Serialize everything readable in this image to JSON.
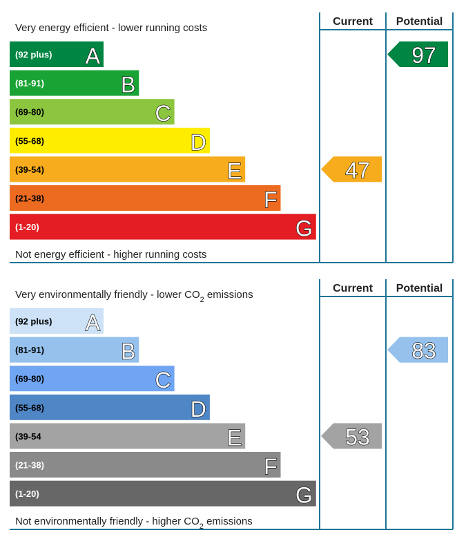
{
  "chart_data": [
    {
      "type": "bar",
      "top_text": "Very energy efficient - lower running costs",
      "bottom_text": "Not energy efficient - higher running costs",
      "columns": [
        "Current",
        "Potential"
      ],
      "bands": [
        {
          "range": "(92 plus)",
          "letter": "A",
          "color": "#008542",
          "label_color": "#ffffff"
        },
        {
          "range": "(81-91)",
          "letter": "B",
          "color": "#19a335",
          "label_color": "#ffffff"
        },
        {
          "range": "(69-80)",
          "letter": "C",
          "color": "#8cc63f",
          "label_color": "#000000"
        },
        {
          "range": "(55-68)",
          "letter": "D",
          "color": "#ffed00",
          "label_color": "#000000"
        },
        {
          "range": "(39-54)",
          "letter": "E",
          "color": "#f7ac1e",
          "label_color": "#000000"
        },
        {
          "range": "(21-38)",
          "letter": "F",
          "color": "#ed6b21",
          "label_color": "#000000"
        },
        {
          "range": "(1-20)",
          "letter": "G",
          "color": "#e31d23",
          "label_color": "#ffffff"
        }
      ],
      "current": {
        "value": 47,
        "band": "E",
        "color": "#f7ac1e"
      },
      "potential": {
        "value": 97,
        "band": "A",
        "color": "#008542"
      }
    },
    {
      "type": "bar",
      "top_text": "Very environmentally friendly - lower CO2 emissions",
      "bottom_text": "Not environmentally friendly - higher CO2 emissions",
      "columns": [
        "Current",
        "Potential"
      ],
      "bands": [
        {
          "range": "(92 plus)",
          "letter": "A",
          "color": "#cde2f6",
          "label_color": "#000000"
        },
        {
          "range": "(81-91)",
          "letter": "B",
          "color": "#95c1ec",
          "label_color": "#000000"
        },
        {
          "range": "(69-80)",
          "letter": "C",
          "color": "#6fa5f2",
          "label_color": "#000000"
        },
        {
          "range": "(55-68)",
          "letter": "D",
          "color": "#4f86c6",
          "label_color": "#000000"
        },
        {
          "range": "(39-54",
          "letter": "E",
          "color": "#a3a3a3",
          "label_color": "#000000"
        },
        {
          "range": "(21-38)",
          "letter": "F",
          "color": "#8a8a8a",
          "label_color": "#ffffff"
        },
        {
          "range": "(1-20)",
          "letter": "G",
          "color": "#676767",
          "label_color": "#ffffff"
        }
      ],
      "current": {
        "value": 53,
        "band": "E",
        "color": "#a3a3a3"
      },
      "potential": {
        "value": 83,
        "band": "B",
        "color": "#95c1ec"
      }
    }
  ]
}
